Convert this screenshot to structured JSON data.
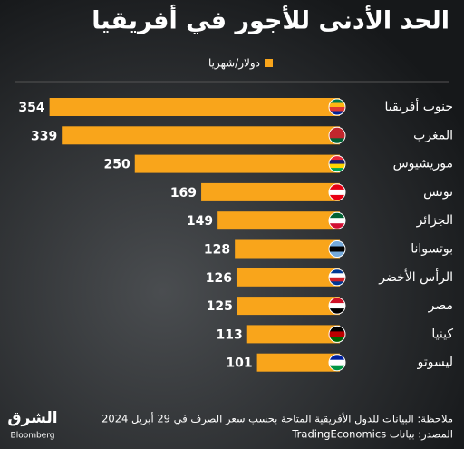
{
  "chart_data": {
    "type": "bar",
    "orientation": "horizontal",
    "title": "الحد الأدنى للأجور في أفريقيا",
    "legend": "دولار/شهريا",
    "color": "#f9a51b",
    "categories": [
      "جنوب أفريقيا",
      "المغرب",
      "موريشيوس",
      "تونس",
      "الجزائر",
      "بوتسوانا",
      "الرأس الأخضر",
      "مصر",
      "كينيا",
      "ليسوتو"
    ],
    "values": [
      354,
      339,
      250,
      169,
      149,
      128,
      126,
      125,
      113,
      101
    ],
    "note": "ملاحظة: البيانات للدول الأفريقية المتاحة بحسب سعر الصرف في 29 أبريل 2024",
    "source": "المصدر: بيانات TradingEconomics",
    "logo": "الشرق",
    "logo_sub": "Bloomberg"
  }
}
